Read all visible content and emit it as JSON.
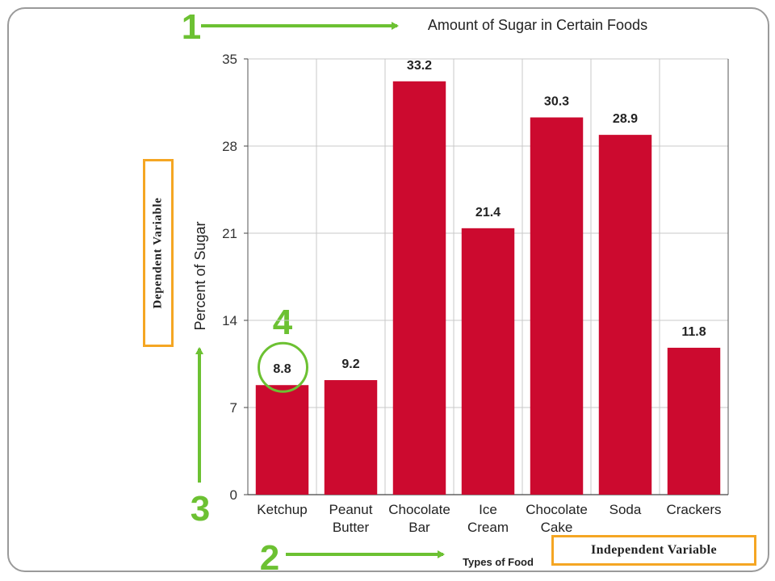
{
  "annotations": {
    "numbers": [
      "1",
      "2",
      "3",
      "4"
    ],
    "dependent_label": "Dependent Variable",
    "independent_label": "Independent Variable",
    "arrow_color": "#6cc132",
    "box_color": "#f5a623"
  },
  "chart_data": {
    "type": "bar",
    "title": "Amount of Sugar in Certain Foods",
    "xlabel": "Types of Food",
    "ylabel": "Percent of Sugar",
    "categories": [
      [
        "Ketchup"
      ],
      [
        "Peanut",
        "Butter"
      ],
      [
        "Chocolate",
        "Bar"
      ],
      [
        "Ice",
        "Cream"
      ],
      [
        "Chocolate",
        "Cake"
      ],
      [
        "Soda"
      ],
      [
        "Crackers"
      ]
    ],
    "values": [
      8.8,
      9.2,
      33.2,
      21.4,
      30.3,
      28.9,
      11.8
    ],
    "value_labels": [
      "8.8",
      "9.2",
      "33.2",
      "21.4",
      "30.3",
      "28.9",
      "11.8"
    ],
    "yticks": [
      0,
      7,
      14,
      21,
      28,
      35
    ],
    "ylim": [
      0,
      35
    ],
    "grid": true,
    "bar_color": "#cc0a2f",
    "highlighted_index": 0
  }
}
